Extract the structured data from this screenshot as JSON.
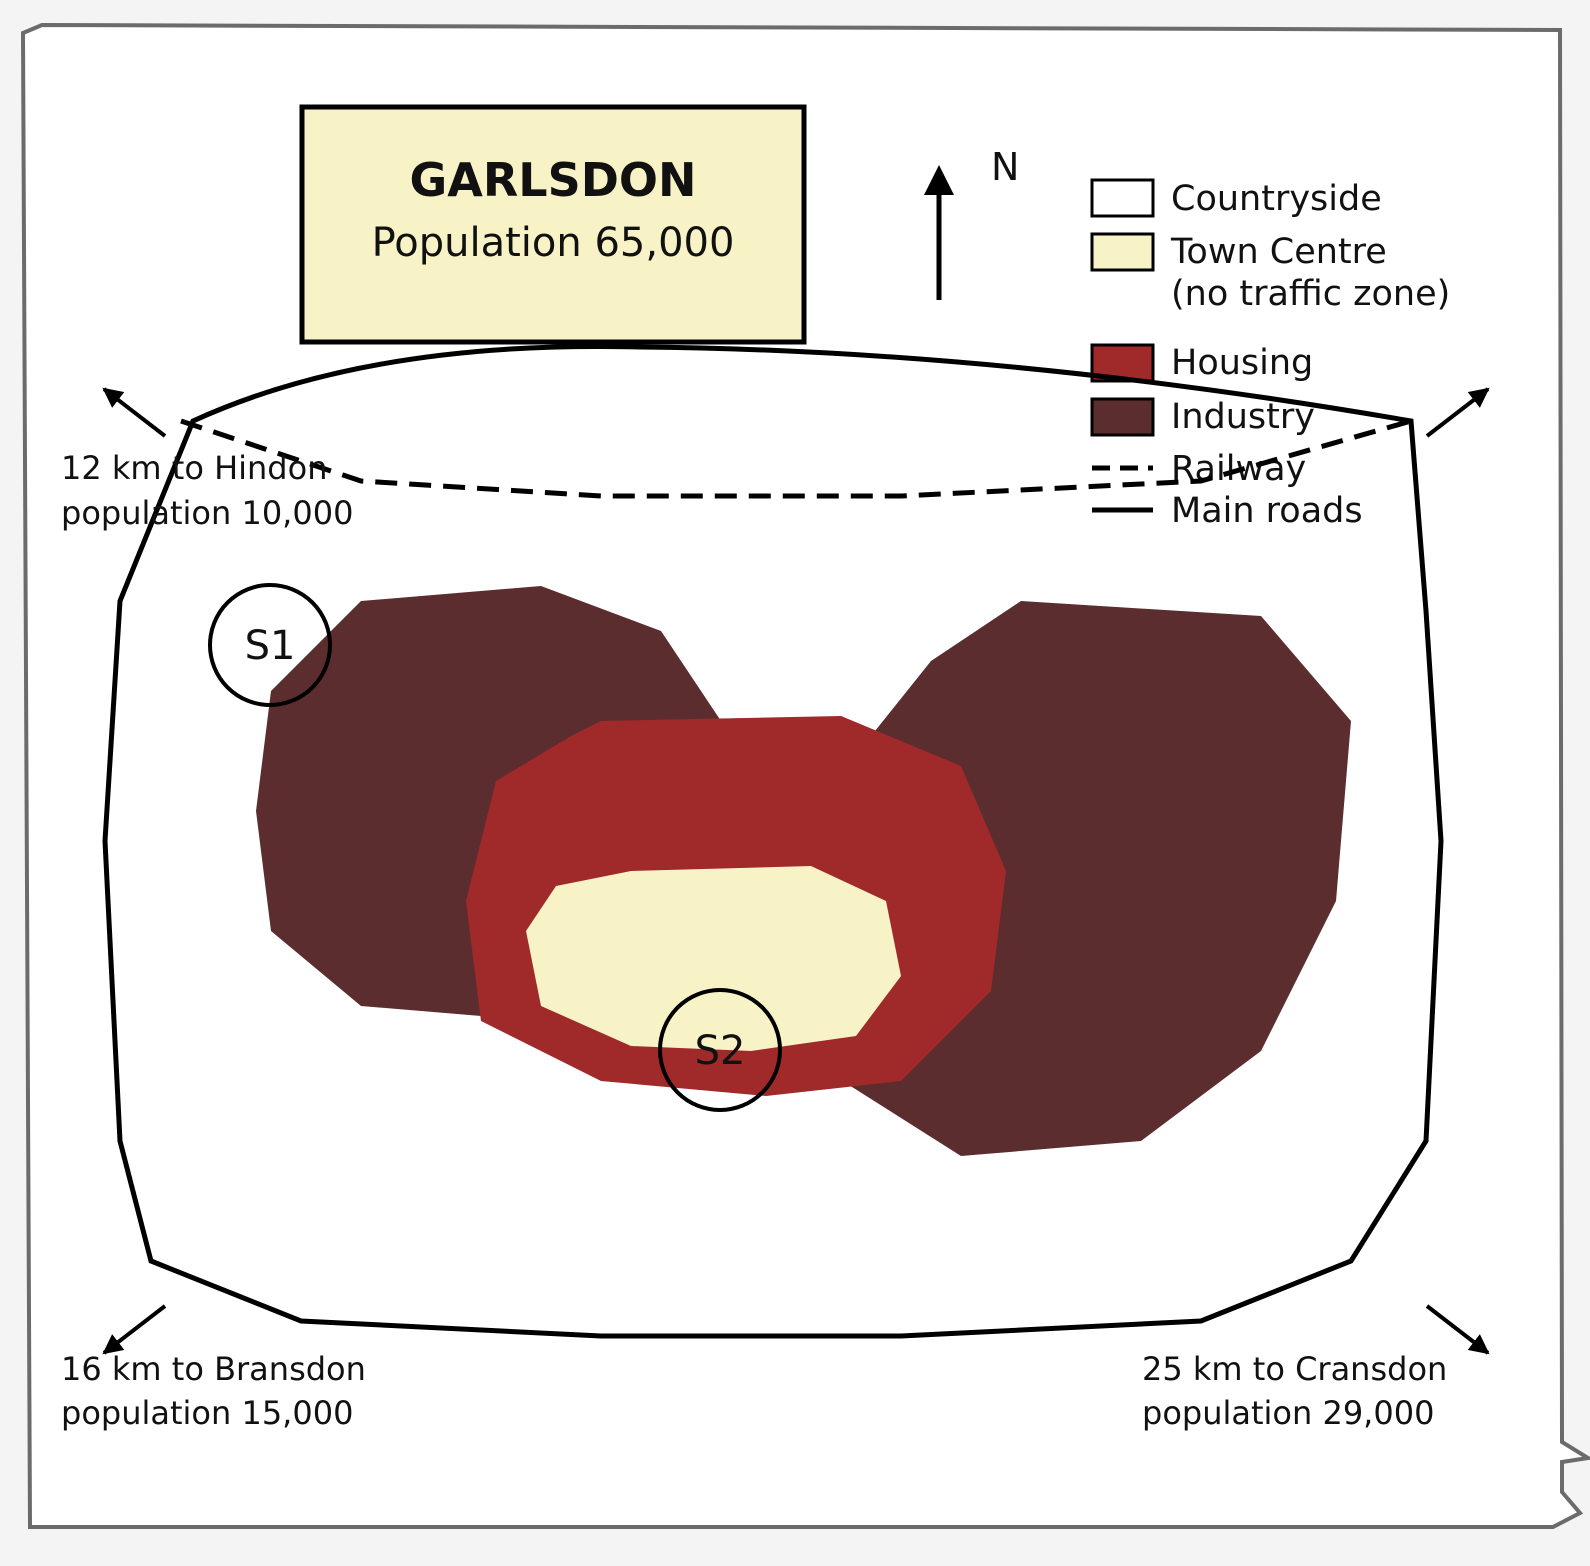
{
  "title": {
    "name": "GARLSDON",
    "population": "Population 65,000"
  },
  "compass": {
    "label": "N"
  },
  "legend": {
    "countryside": "Countryside",
    "town_centre_line1": "Town Centre",
    "town_centre_line2": "(no traffic zone)",
    "housing": "Housing",
    "industry": "Industry",
    "railway": "Railway",
    "main_roads": "Main roads"
  },
  "sites": {
    "s1": "S1",
    "s2": "S2"
  },
  "destinations": {
    "hindon_line1": "12 km to Hindon",
    "hindon_line2": "population 10,000",
    "bransdon_line1": "16 km to Bransdon",
    "bransdon_line2": "population 15,000",
    "cransdon_line1": "25 km to Cransdon",
    "cransdon_line2": "population 29,000"
  },
  "colors": {
    "countryside": "#ffffff",
    "town_centre": "#f8f2c7",
    "housing": "#a0292a",
    "industry": "#5c2d2e",
    "line": "#000000",
    "page_border": "#6b6b6b"
  }
}
